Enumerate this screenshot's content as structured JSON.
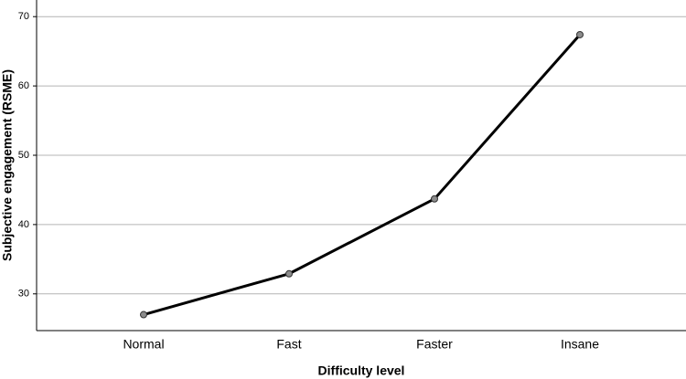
{
  "chart_data": {
    "type": "line",
    "x_label": "Difficulty level",
    "y_label": "Subjective engagement (RSME)",
    "categories": [
      "Normal",
      "Fast",
      "Faster",
      "Insane"
    ],
    "values": [
      27.0,
      32.9,
      43.7,
      67.4
    ],
    "color": "#000000",
    "marker_color": "#8c8c8c",
    "ylim": [
      24.7,
      72.4
    ],
    "yticks": [
      30,
      40,
      50,
      60,
      70
    ],
    "grid": true
  }
}
